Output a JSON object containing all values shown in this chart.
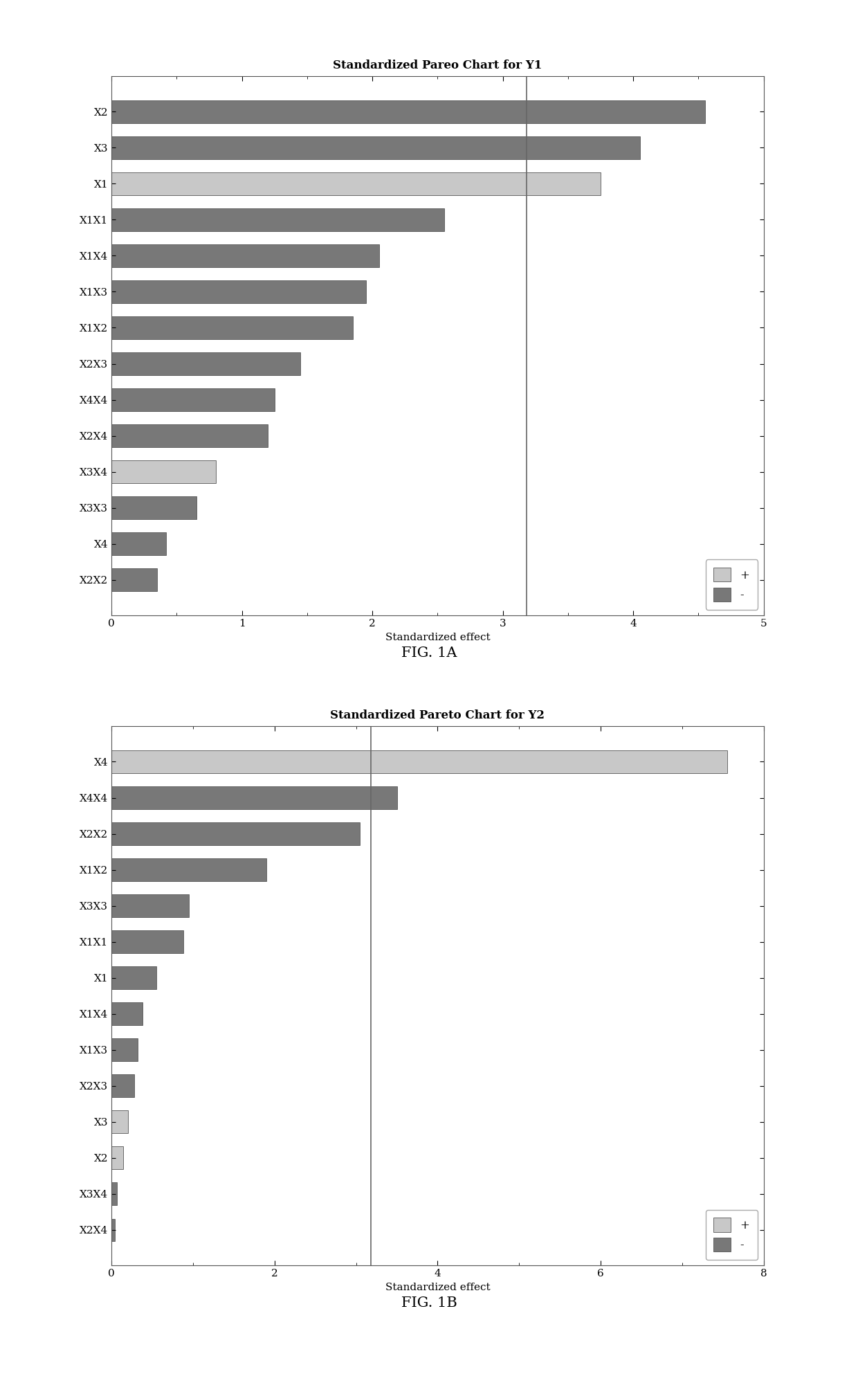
{
  "chart1": {
    "title": "Standardized Pareo Chart for Y1",
    "xlabel": "Standardized effect",
    "categories": [
      "X2",
      "X3",
      "X1",
      "X1X1",
      "X1X4",
      "X1X3",
      "X1X2",
      "X2X3",
      "X4X4",
      "X2X4",
      "X3X4",
      "X3X3",
      "X4",
      "X2X2"
    ],
    "values": [
      4.55,
      4.05,
      3.75,
      2.55,
      2.05,
      1.95,
      1.85,
      1.45,
      1.25,
      1.2,
      0.8,
      0.65,
      0.42,
      0.35
    ],
    "colors": [
      "dark",
      "dark",
      "light",
      "dark",
      "dark",
      "dark",
      "dark",
      "dark",
      "dark",
      "dark",
      "light",
      "dark",
      "dark",
      "dark"
    ],
    "vline": 3.18,
    "xlim": [
      0,
      5
    ],
    "xticks": [
      0,
      1,
      2,
      3,
      4,
      5
    ],
    "figcaption": "FIG. 1A"
  },
  "chart2": {
    "title": "Standardized Pareto Chart for Y2",
    "xlabel": "Standardized effect",
    "categories": [
      "X4",
      "X4X4",
      "X2X2",
      "X1X2",
      "X3X3",
      "X1X1",
      "X1",
      "X1X4",
      "X1X3",
      "X2X3",
      "X3",
      "X2",
      "X3X4",
      "X2X4"
    ],
    "values": [
      7.55,
      3.5,
      3.05,
      1.9,
      0.95,
      0.88,
      0.55,
      0.38,
      0.32,
      0.28,
      0.2,
      0.14,
      0.07,
      0.04
    ],
    "colors": [
      "light",
      "dark",
      "dark",
      "dark",
      "dark",
      "dark",
      "dark",
      "dark",
      "dark",
      "dark",
      "light",
      "light",
      "dark",
      "dark"
    ],
    "vline": 3.18,
    "xlim": [
      0,
      8
    ],
    "xticks": [
      0,
      2,
      4,
      6,
      8
    ],
    "figcaption": "FIG. 1B"
  },
  "color_light": "#c8c8c8",
  "color_dark": "#787878",
  "bar_height": 0.62,
  "title_fontsize": 12,
  "label_fontsize": 11,
  "tick_fontsize": 11,
  "caption_fontsize": 15
}
